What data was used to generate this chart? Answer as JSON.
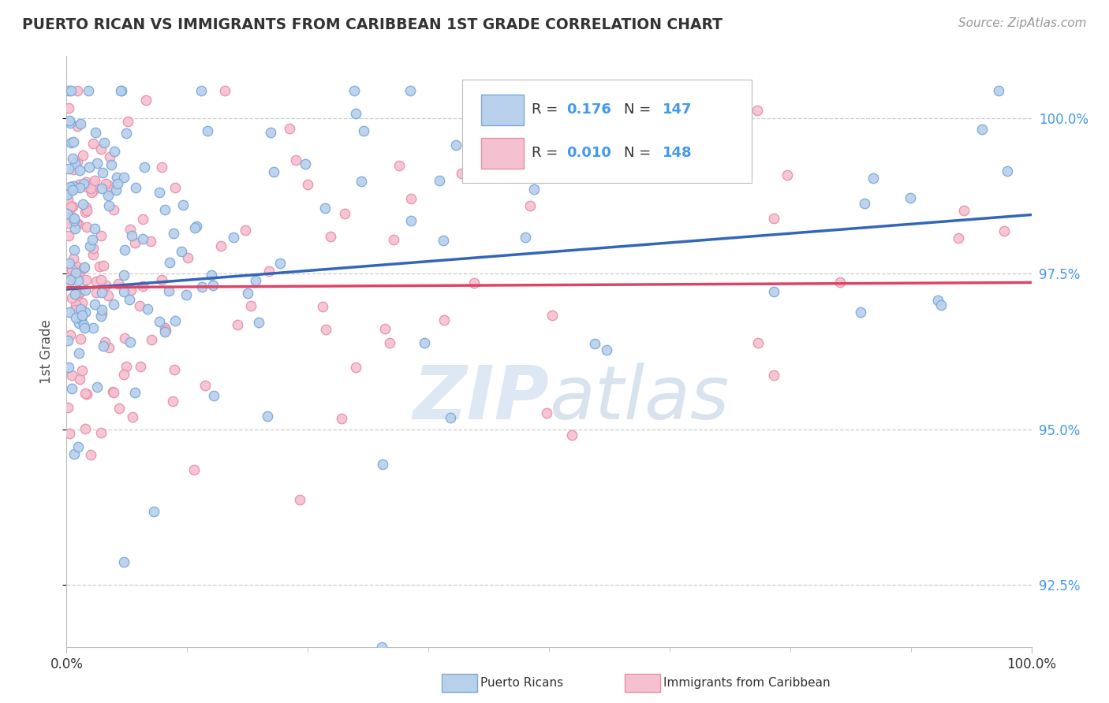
{
  "title": "PUERTO RICAN VS IMMIGRANTS FROM CARIBBEAN 1ST GRADE CORRELATION CHART",
  "source_text": "Source: ZipAtlas.com",
  "ylabel": "1st Grade",
  "xmin": 0.0,
  "xmax": 100.0,
  "ymin": 91.5,
  "ymax": 101.0,
  "yticks": [
    92.5,
    95.0,
    97.5,
    100.0
  ],
  "ytick_labels": [
    "92.5%",
    "95.0%",
    "97.5%",
    "100.0%"
  ],
  "blue_R": 0.176,
  "blue_N": 147,
  "pink_R": 0.01,
  "pink_N": 148,
  "blue_color": "#b8d0ea",
  "blue_edge_color": "#7aaadd",
  "pink_color": "#f5c0d0",
  "pink_edge_color": "#e890a8",
  "blue_line_color": "#3366bb",
  "pink_line_color": "#dd4466",
  "blue_legend_color": "#b8d0ea",
  "pink_legend_color": "#f5c0d0",
  "watermark_color": "#d8e4f0",
  "background_color": "#ffffff",
  "grid_color": "#cccccc",
  "title_color": "#333333",
  "tick_color": "#4499ee",
  "marker_size": 80,
  "seed_blue": 42,
  "seed_pink": 77,
  "blue_line_start_y": 97.25,
  "blue_line_end_y": 98.45,
  "pink_line_start_y": 97.28,
  "pink_line_end_y": 97.36
}
